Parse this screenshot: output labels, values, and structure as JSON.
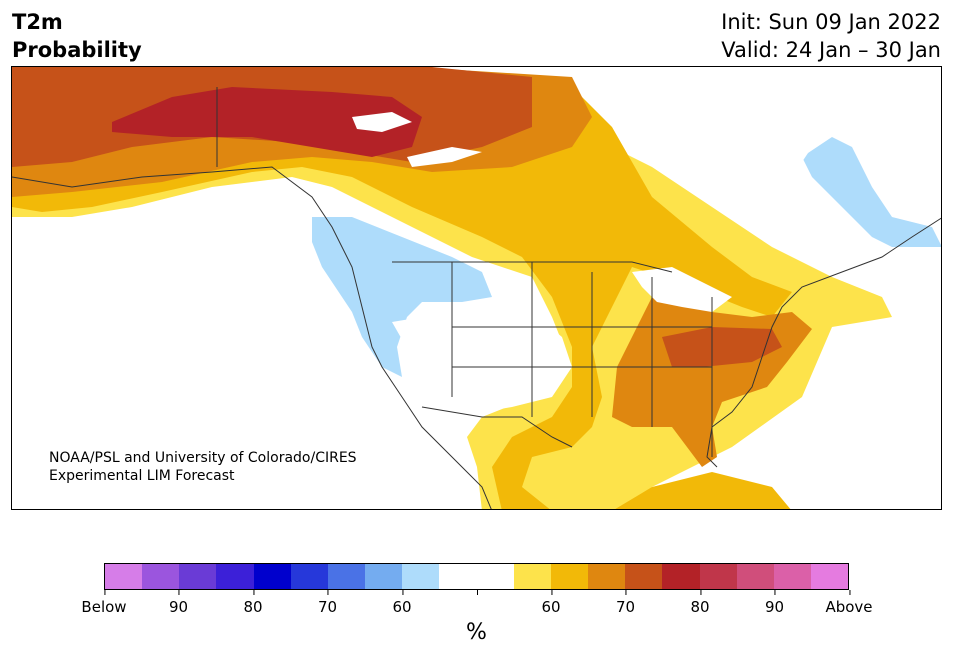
{
  "header": {
    "variable": "T2m",
    "product": "Probability",
    "init": "Init: Sun 09 Jan 2022",
    "valid": "Valid: 24 Jan – 30 Jan"
  },
  "credit": {
    "line1": "NOAA/PSL and University of Colorado/CIRES",
    "line2": "Experimental LIM Forecast"
  },
  "colorbar": {
    "colors": [
      "#d67de8",
      "#9b55de",
      "#6a3bd6",
      "#3c20d8",
      "#0000cd",
      "#2638da",
      "#4a72e6",
      "#74acf0",
      "#aedcfb",
      "#ffffff",
      "#ffffff",
      "#fde34b",
      "#f2b908",
      "#df8710",
      "#c65219",
      "#b32227",
      "#c0364a",
      "#d04e7b",
      "#db60a8",
      "#e57be0"
    ],
    "labels": [
      "Below",
      "90",
      "80",
      "70",
      "60",
      "",
      "60",
      "70",
      "80",
      "90",
      "Above"
    ],
    "unit": "%"
  },
  "legend_colors": {
    "above_60": "#fde34b",
    "above_65": "#f2b908",
    "above_70": "#df8710",
    "above_75": "#c65219",
    "above_80": "#b32227",
    "below_60": "#aedcfb"
  }
}
